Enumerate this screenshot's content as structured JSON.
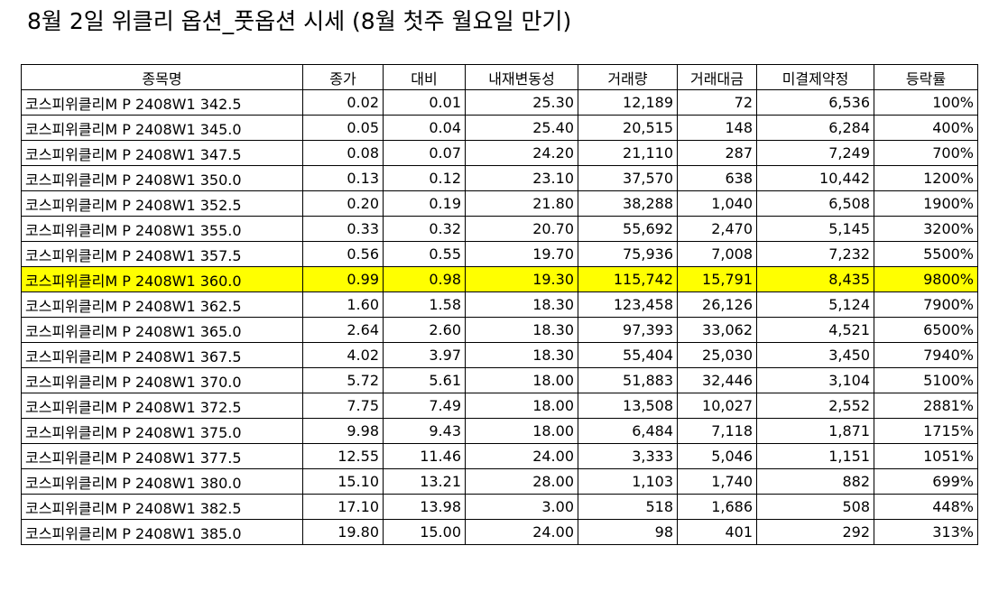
{
  "title": "8월 2일 위클리 옵션_풋옵션 시세 (8월 첫주 월요일 만기)",
  "table": {
    "header": [
      "종목명",
      "종가",
      "대비",
      "내재변동성",
      "거래량",
      "거래대금",
      "미결제약정",
      "등락률"
    ],
    "highlight_row": 7,
    "highlight_color": "#ffff00",
    "rows": [
      [
        "코스피위클리M P 2408W1 342.5",
        "0.02",
        "0.01",
        "25.30",
        "12,189",
        "72",
        "6,536",
        "100%"
      ],
      [
        "코스피위클리M P 2408W1 345.0",
        "0.05",
        "0.04",
        "25.40",
        "20,515",
        "148",
        "6,284",
        "400%"
      ],
      [
        "코스피위클리M P 2408W1 347.5",
        "0.08",
        "0.07",
        "24.20",
        "21,110",
        "287",
        "7,249",
        "700%"
      ],
      [
        "코스피위클리M P 2408W1 350.0",
        "0.13",
        "0.12",
        "23.10",
        "37,570",
        "638",
        "10,442",
        "1200%"
      ],
      [
        "코스피위클리M P 2408W1 352.5",
        "0.20",
        "0.19",
        "21.80",
        "38,288",
        "1,040",
        "6,508",
        "1900%"
      ],
      [
        "코스피위클리M P 2408W1 355.0",
        "0.33",
        "0.32",
        "20.70",
        "55,692",
        "2,470",
        "5,145",
        "3200%"
      ],
      [
        "코스피위클리M P 2408W1 357.5",
        "0.56",
        "0.55",
        "19.70",
        "75,936",
        "7,008",
        "7,232",
        "5500%"
      ],
      [
        "코스피위클리M P 2408W1 360.0",
        "0.99",
        "0.98",
        "19.30",
        "115,742",
        "15,791",
        "8,435",
        "9800%"
      ],
      [
        "코스피위클리M P 2408W1 362.5",
        "1.60",
        "1.58",
        "18.30",
        "123,458",
        "26,126",
        "5,124",
        "7900%"
      ],
      [
        "코스피위클리M P 2408W1 365.0",
        "2.64",
        "2.60",
        "18.30",
        "97,393",
        "33,062",
        "4,521",
        "6500%"
      ],
      [
        "코스피위클리M P 2408W1 367.5",
        "4.02",
        "3.97",
        "18.30",
        "55,404",
        "25,030",
        "3,450",
        "7940%"
      ],
      [
        "코스피위클리M P 2408W1 370.0",
        "5.72",
        "5.61",
        "18.00",
        "51,883",
        "32,446",
        "3,104",
        "5100%"
      ],
      [
        "코스피위클리M P 2408W1 372.5",
        "7.75",
        "7.49",
        "18.00",
        "13,508",
        "10,027",
        "2,552",
        "2881%"
      ],
      [
        "코스피위클리M P 2408W1 375.0",
        "9.98",
        "9.43",
        "18.00",
        "6,484",
        "7,118",
        "1,871",
        "1715%"
      ],
      [
        "코스피위클리M P 2408W1 377.5",
        "12.55",
        "11.46",
        "24.00",
        "3,333",
        "5,046",
        "1,151",
        "1051%"
      ],
      [
        "코스피위클리M P 2408W1 380.0",
        "15.10",
        "13.21",
        "28.00",
        "1,103",
        "1,740",
        "882",
        "699%"
      ],
      [
        "코스피위클리M P 2408W1 382.5",
        "17.10",
        "13.98",
        "3.00",
        "518",
        "1,686",
        "508",
        "448%"
      ],
      [
        "코스피위클리M P 2408W1 385.0",
        "19.80",
        "15.00",
        "24.00",
        "98",
        "401",
        "292",
        "313%"
      ]
    ]
  }
}
